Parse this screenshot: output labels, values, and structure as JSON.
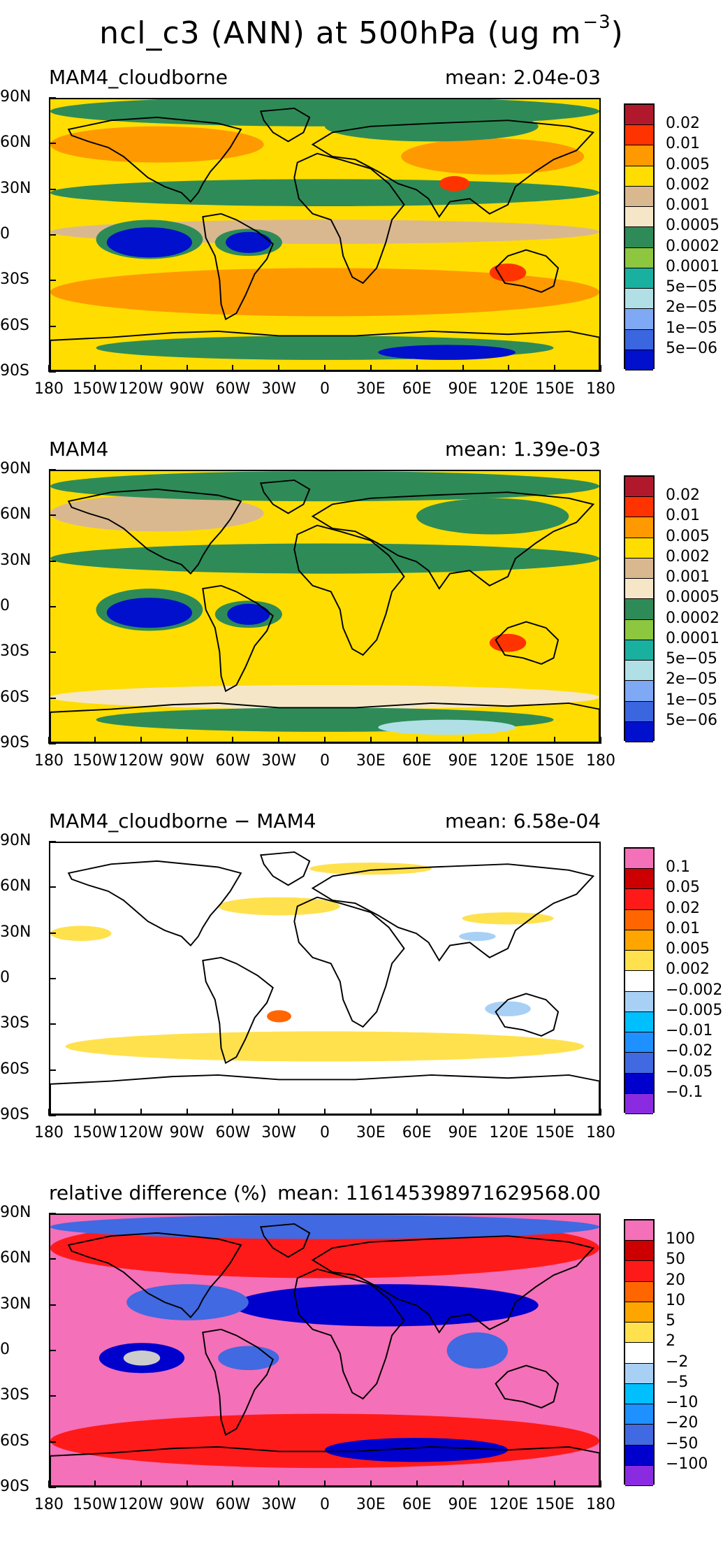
{
  "title": {
    "main": "ncl_c3 (ANN) at 500hPa (ug m",
    "sup": "−3",
    "close": ")"
  },
  "colors": {
    "conc": [
      "#b2182b",
      "#ff3300",
      "#ff9900",
      "#ffdd00",
      "#d9b88f",
      "#f5e6c8",
      "#2e8b57",
      "#8dc63f",
      "#1ab0a0",
      "#b0e0e6",
      "#7fa8f5",
      "#3a66e0",
      "#0010cc"
    ],
    "diff": [
      "#f470b8",
      "#cc0000",
      "#ff1a1a",
      "#ff6600",
      "#ffa500",
      "#ffe14d",
      "#ffffff",
      "#a8d0f5",
      "#00bfff",
      "#1e90ff",
      "#4169e1",
      "#0000cd",
      "#8a2be2"
    ]
  },
  "chart_data": [
    {
      "type": "heatmap",
      "title": "MAM4_cloudborne",
      "mean": "mean: 2.04e-03",
      "lat_ticks": [
        "90N",
        "60N",
        "30N",
        "0",
        "30S",
        "60S",
        "90S"
      ],
      "lon_ticks": [
        "180",
        "150W",
        "120W",
        "90W",
        "60W",
        "30W",
        "0",
        "30E",
        "60E",
        "90E",
        "120E",
        "150E",
        "180"
      ],
      "colorbar_labels": [
        "0.02",
        "0.01",
        "0.005",
        "0.002",
        "0.001",
        "0.0005",
        "0.0002",
        "0.0001",
        "5e−05",
        "2e−05",
        "1e−05",
        "5e−06"
      ]
    },
    {
      "type": "heatmap",
      "title": "MAM4",
      "mean": "mean: 1.39e-03",
      "lat_ticks": [
        "90N",
        "60N",
        "30N",
        "0",
        "30S",
        "60S",
        "90S"
      ],
      "lon_ticks": [
        "180",
        "150W",
        "120W",
        "90W",
        "60W",
        "30W",
        "0",
        "30E",
        "60E",
        "90E",
        "120E",
        "150E",
        "180"
      ],
      "colorbar_labels": [
        "0.02",
        "0.01",
        "0.005",
        "0.002",
        "0.001",
        "0.0005",
        "0.0002",
        "0.0001",
        "5e−05",
        "2e−05",
        "1e−05",
        "5e−06"
      ]
    },
    {
      "type": "heatmap",
      "title": "MAM4_cloudborne − MAM4",
      "mean": "mean: 6.58e-04",
      "lat_ticks": [
        "90N",
        "60N",
        "30N",
        "0",
        "30S",
        "60S",
        "90S"
      ],
      "lon_ticks": [
        "180",
        "150W",
        "120W",
        "90W",
        "60W",
        "30W",
        "0",
        "30E",
        "60E",
        "90E",
        "120E",
        "150E",
        "180"
      ],
      "colorbar_labels": [
        "0.1",
        "0.05",
        "0.02",
        "0.01",
        "0.005",
        "0.002",
        "−0.002",
        "−0.005",
        "−0.01",
        "−0.02",
        "−0.05",
        "−0.1"
      ]
    },
    {
      "type": "heatmap",
      "title": "relative difference (%)",
      "mean": "mean: 116145398971629568.00",
      "lat_ticks": [
        "90N",
        "60N",
        "30N",
        "0",
        "30S",
        "60S",
        "90S"
      ],
      "lon_ticks": [
        "180",
        "150W",
        "120W",
        "90W",
        "60W",
        "30W",
        "0",
        "30E",
        "60E",
        "90E",
        "120E",
        "150E",
        "180"
      ],
      "colorbar_labels": [
        "100",
        "50",
        "20",
        "10",
        "5",
        "2",
        "−2",
        "−5",
        "−10",
        "−20",
        "−50",
        "−100"
      ]
    }
  ]
}
